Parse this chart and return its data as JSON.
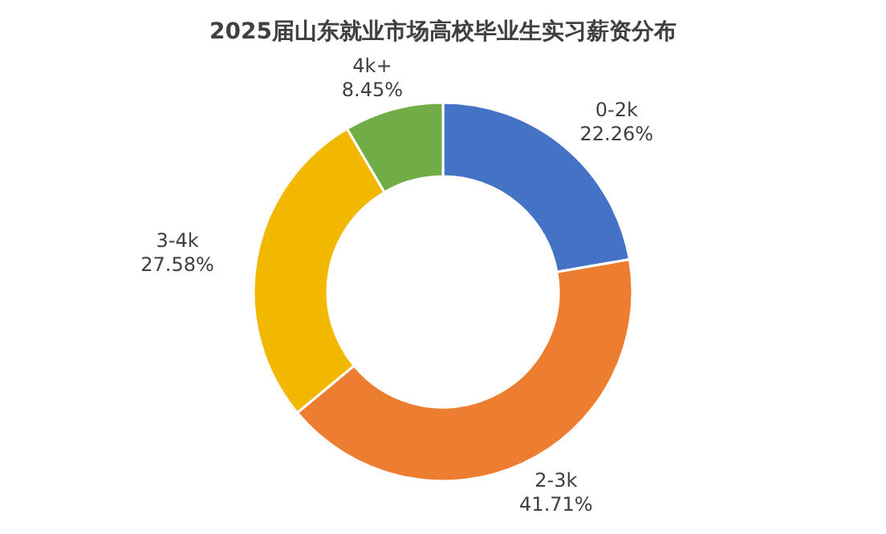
{
  "chart_data": {
    "type": "donut",
    "title": "2025届山东就业市场高校毕业生实习薪资分布",
    "categories": [
      "0-2k",
      "2-3k",
      "3-4k",
      "4k+"
    ],
    "values": [
      22.26,
      41.71,
      27.58,
      8.45
    ],
    "value_labels": [
      "22.26%",
      "41.71%",
      "27.58%",
      "8.45%"
    ],
    "colors": [
      "#4472c4",
      "#ed7d31",
      "#f2b800",
      "#70ad47"
    ]
  }
}
